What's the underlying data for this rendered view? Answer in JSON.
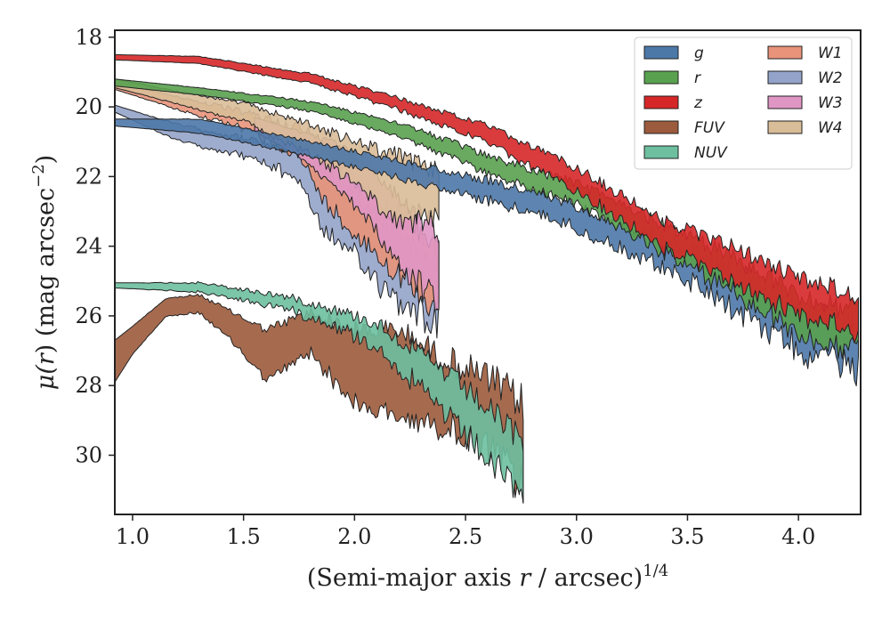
{
  "chart_data": {
    "type": "area",
    "xlabel": "(Semi-major axis r / arcsec)^1/4",
    "xlabel_parts": {
      "pre": "(Semi-major axis ",
      "var": "r",
      "mid": " / arcsec)",
      "sup": "1/4"
    },
    "ylabel": "μ(r) (mag arcsec^−2)",
    "ylabel_parts": {
      "mu": "μ(",
      "var": "r",
      "post": ") (mag arcsec",
      "sup": "−2",
      "close": ")"
    },
    "xlim": [
      0.92,
      4.28
    ],
    "ylim": [
      31.7,
      17.8
    ],
    "y_inverted": true,
    "xticks": [
      1.0,
      1.5,
      2.0,
      2.5,
      3.0,
      3.5,
      4.0
    ],
    "xtick_labels": [
      "1.0",
      "1.5",
      "2.0",
      "2.5",
      "3.0",
      "3.5",
      "4.0"
    ],
    "yticks": [
      18,
      20,
      22,
      24,
      26,
      28,
      30
    ],
    "ytick_labels": [
      "18",
      "20",
      "22",
      "24",
      "26",
      "28",
      "30"
    ],
    "grid": false,
    "legend": {
      "placement": "top-right",
      "columns": 2
    },
    "series": [
      {
        "name": "g",
        "color": "#4c78a8",
        "x_end": 4.27,
        "end_noise": 0.85,
        "knots": [
          [
            0.92,
            20.35,
            20.55
          ],
          [
            1.3,
            20.35,
            20.75
          ],
          [
            1.8,
            21.0,
            21.4
          ],
          [
            2.2,
            21.55,
            22.0
          ],
          [
            2.6,
            22.1,
            22.6
          ],
          [
            3.0,
            22.8,
            23.4
          ],
          [
            3.4,
            23.8,
            24.5
          ],
          [
            3.7,
            24.6,
            25.6
          ],
          [
            4.0,
            25.6,
            26.8
          ],
          [
            4.27,
            26.3,
            27.3
          ]
        ]
      },
      {
        "name": "r",
        "color": "#59a14f",
        "x_end": 4.27,
        "end_noise": 0.7,
        "knots": [
          [
            0.92,
            19.2,
            19.4
          ],
          [
            1.3,
            19.45,
            19.65
          ],
          [
            1.8,
            19.85,
            20.1
          ],
          [
            2.2,
            20.45,
            20.8
          ],
          [
            2.6,
            21.4,
            21.85
          ],
          [
            3.0,
            22.2,
            22.75
          ],
          [
            3.4,
            23.4,
            24.1
          ],
          [
            3.7,
            24.3,
            25.2
          ],
          [
            4.0,
            25.4,
            26.4
          ],
          [
            4.27,
            25.9,
            26.9
          ]
        ]
      },
      {
        "name": "z",
        "color": "#d62728",
        "x_end": 4.27,
        "end_noise": 0.6,
        "knots": [
          [
            0.92,
            18.5,
            18.65
          ],
          [
            1.3,
            18.55,
            18.75
          ],
          [
            1.8,
            19.05,
            19.3
          ],
          [
            2.2,
            19.75,
            20.05
          ],
          [
            2.6,
            20.55,
            21.0
          ],
          [
            3.0,
            21.75,
            22.35
          ],
          [
            3.4,
            23.3,
            24.0
          ],
          [
            3.7,
            24.0,
            24.9
          ],
          [
            4.0,
            24.9,
            25.9
          ],
          [
            4.27,
            25.4,
            26.3
          ]
        ]
      },
      {
        "name": "FUV",
        "color": "#9c5b3c",
        "x_end": 2.76,
        "end_noise": 1.2,
        "knots": [
          [
            0.92,
            26.7,
            27.9
          ],
          [
            1.0,
            26.3,
            27.1
          ],
          [
            1.15,
            25.5,
            26.0
          ],
          [
            1.3,
            25.4,
            25.9
          ],
          [
            1.45,
            25.9,
            26.7
          ],
          [
            1.6,
            26.4,
            27.8
          ],
          [
            1.8,
            25.9,
            27.0
          ],
          [
            2.0,
            26.4,
            28.4
          ],
          [
            2.2,
            26.4,
            28.8
          ],
          [
            2.4,
            27.2,
            29.0
          ],
          [
            2.6,
            27.8,
            29.6
          ],
          [
            2.76,
            28.5,
            30.6
          ]
        ]
      },
      {
        "name": "NUV",
        "color": "#6dbf9f",
        "x_end": 2.76,
        "end_noise": 0.9,
        "knots": [
          [
            0.92,
            25.05,
            25.2
          ],
          [
            1.3,
            25.05,
            25.3
          ],
          [
            1.7,
            25.45,
            25.75
          ],
          [
            1.9,
            25.8,
            26.2
          ],
          [
            2.1,
            26.2,
            26.8
          ],
          [
            2.3,
            27.1,
            28.0
          ],
          [
            2.5,
            28.1,
            29.3
          ],
          [
            2.76,
            29.6,
            31.0
          ]
        ]
      },
      {
        "name": "W1",
        "color": "#e8937a",
        "x_end": 2.38,
        "end_noise": 0.9,
        "knots": [
          [
            0.92,
            19.3,
            19.5
          ],
          [
            1.2,
            19.7,
            20.05
          ],
          [
            1.5,
            20.15,
            20.6
          ],
          [
            1.75,
            20.6,
            21.3
          ],
          [
            1.85,
            21.0,
            22.5
          ],
          [
            2.0,
            22.1,
            23.5
          ],
          [
            2.2,
            23.1,
            24.7
          ],
          [
            2.38,
            23.8,
            25.6
          ]
        ]
      },
      {
        "name": "W2",
        "color": "#93a3c9",
        "x_end": 2.38,
        "end_noise": 1.0,
        "knots": [
          [
            0.92,
            19.95,
            20.15
          ],
          [
            1.2,
            20.5,
            20.95
          ],
          [
            1.5,
            20.9,
            21.35
          ],
          [
            1.75,
            21.3,
            22.0
          ],
          [
            1.85,
            21.7,
            23.4
          ],
          [
            2.0,
            22.6,
            24.2
          ],
          [
            2.2,
            23.6,
            25.4
          ],
          [
            2.38,
            24.3,
            26.0
          ]
        ]
      },
      {
        "name": "W3",
        "color": "#e096c4",
        "x_end": 2.38,
        "end_noise": 0.9,
        "knots": [
          [
            1.55,
            20.3,
            20.7
          ],
          [
            1.75,
            20.7,
            21.4
          ],
          [
            1.9,
            21.0,
            22.2
          ],
          [
            2.05,
            21.6,
            23.0
          ],
          [
            2.2,
            22.6,
            24.4
          ],
          [
            2.38,
            23.6,
            25.4
          ]
        ]
      },
      {
        "name": "W4",
        "color": "#d9bc98",
        "x_end": 2.38,
        "end_noise": 0.6,
        "knots": [
          [
            0.92,
            19.2,
            19.45
          ],
          [
            1.2,
            19.55,
            19.9
          ],
          [
            1.5,
            19.9,
            20.4
          ],
          [
            1.8,
            20.5,
            21.3
          ],
          [
            2.0,
            21.0,
            22.1
          ],
          [
            2.2,
            21.4,
            23.3
          ],
          [
            2.38,
            21.9,
            23.0
          ]
        ]
      }
    ]
  }
}
